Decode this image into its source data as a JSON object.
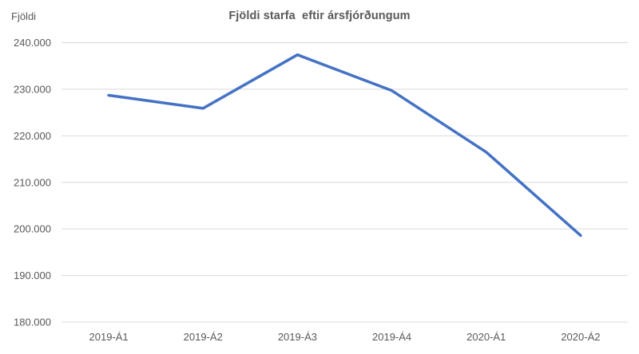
{
  "chart_data": {
    "type": "line",
    "title": "Fjöldi starfa  eftir ársfjórðungum",
    "y_axis_title": "Fjöldi",
    "categories": [
      "2019-Á1",
      "2019-Á2",
      "2019-Á3",
      "2019-Á4",
      "2020-Á1",
      "2020-Á2"
    ],
    "values": [
      228700,
      225900,
      237400,
      229700,
      216500,
      198600
    ],
    "xlabel": "",
    "ylabel": "Fjöldi",
    "ylim": [
      180000,
      240000
    ],
    "ytick_interval": 10000,
    "ytick_labels": [
      "180.000",
      "190.000",
      "200.000",
      "210.000",
      "220.000",
      "230.000",
      "240.000"
    ],
    "grid": true,
    "legend": "none",
    "line_color": "#4472C4",
    "gridline_color": "#D9D9D9",
    "axis_text_color": "#595959",
    "title_color": "#595959"
  }
}
